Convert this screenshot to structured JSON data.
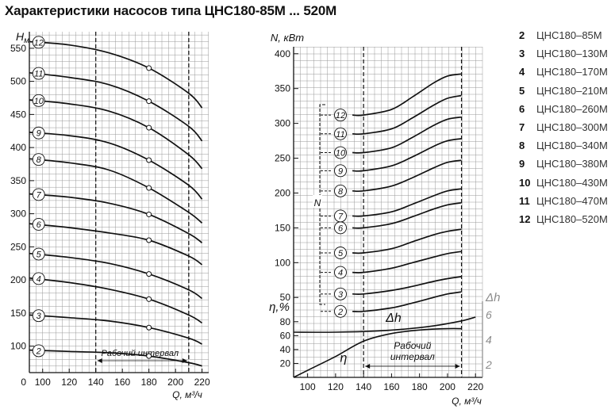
{
  "title": "Характеристики насосов типа ЦНС180-85М ... 520М",
  "legend": [
    {
      "num": "2",
      "name": "ЦНС180–85М"
    },
    {
      "num": "3",
      "name": "ЦНС180–130М"
    },
    {
      "num": "4",
      "name": "ЦНС180–170М"
    },
    {
      "num": "5",
      "name": "ЦНС180–210М"
    },
    {
      "num": "6",
      "name": "ЦНС180–260М"
    },
    {
      "num": "7",
      "name": "ЦНС180–300М"
    },
    {
      "num": "8",
      "name": "ЦНС180–340М"
    },
    {
      "num": "9",
      "name": "ЦНС180–380М"
    },
    {
      "num": "10",
      "name": "ЦНС180–430М"
    },
    {
      "num": "11",
      "name": "ЦНС180–470М"
    },
    {
      "num": "12",
      "name": "ЦНС180–520М"
    }
  ],
  "chart_data": [
    {
      "type": "line",
      "ylabel": "H",
      "ylabel_sub": "м",
      "xlabel": "Q, м³/ч",
      "origin_label": "0",
      "xlim": [
        90,
        225
      ],
      "ylim": [
        60,
        575
      ],
      "xticks": [
        100,
        120,
        140,
        160,
        180,
        200,
        220
      ],
      "yticks": [
        100,
        150,
        200,
        250,
        300,
        350,
        400,
        450,
        500,
        550
      ],
      "working_range": [
        140,
        210
      ],
      "working_range_label": "Рабочий интервал",
      "series": [
        {
          "name": "2",
          "x": [
            90,
            120,
            150,
            180,
            210,
            220
          ],
          "y": [
            94,
            92,
            90,
            85,
            75,
            70
          ],
          "marker": 180
        },
        {
          "name": "3",
          "x": [
            90,
            120,
            150,
            180,
            210,
            220
          ],
          "y": [
            147,
            143,
            138,
            128,
            112,
            103
          ],
          "marker": 180
        },
        {
          "name": "4",
          "x": [
            90,
            120,
            150,
            180,
            210,
            220
          ],
          "y": [
            203,
            196,
            186,
            171,
            147,
            135
          ],
          "marker": 180
        },
        {
          "name": "5",
          "x": [
            90,
            120,
            150,
            180,
            210,
            220
          ],
          "y": [
            240,
            234,
            225,
            209,
            185,
            172
          ],
          "marker": 180
        },
        {
          "name": "6",
          "x": [
            90,
            120,
            150,
            180,
            210,
            220
          ],
          "y": [
            285,
            279,
            271,
            260,
            236,
            223
          ],
          "marker": 180
        },
        {
          "name": "7",
          "x": [
            90,
            120,
            150,
            180,
            210,
            220
          ],
          "y": [
            330,
            325,
            316,
            299,
            270,
            256
          ],
          "marker": 180
        },
        {
          "name": "8",
          "x": [
            90,
            120,
            150,
            180,
            210,
            220
          ],
          "y": [
            383,
            377,
            366,
            339,
            302,
            286
          ],
          "marker": 180
        },
        {
          "name": "9",
          "x": [
            90,
            120,
            150,
            180,
            210,
            220
          ],
          "y": [
            423,
            418,
            407,
            381,
            343,
            322
          ],
          "marker": 180
        },
        {
          "name": "10",
          "x": [
            90,
            120,
            150,
            180,
            210,
            220
          ],
          "y": [
            472,
            466,
            455,
            430,
            389,
            368
          ],
          "marker": 180
        },
        {
          "name": "11",
          "x": [
            90,
            120,
            150,
            180,
            210,
            220
          ],
          "y": [
            513,
            506,
            495,
            470,
            432,
            410
          ],
          "marker": 180
        },
        {
          "name": "12",
          "x": [
            90,
            120,
            150,
            180,
            210,
            220
          ],
          "y": [
            560,
            555,
            543,
            520,
            482,
            460
          ],
          "marker": 180
        }
      ]
    },
    {
      "type": "line",
      "ylabel": "N, кВт",
      "xlabel": "Q, м³/ч",
      "xlim": [
        90,
        225
      ],
      "ylim": [
        40,
        410
      ],
      "xticks": [
        100,
        120,
        140,
        160,
        180,
        200,
        220
      ],
      "yticks": [
        50,
        100,
        150,
        200,
        250,
        300,
        350,
        400
      ],
      "working_range": [
        140,
        210
      ],
      "bracket_label": "N",
      "series": [
        {
          "name": "2",
          "x": [
            140,
            160,
            175,
            190,
            200,
            210
          ],
          "y": [
            30,
            35,
            42,
            50,
            55,
            58
          ]
        },
        {
          "name": "3",
          "x": [
            140,
            160,
            175,
            190,
            200,
            210
          ],
          "y": [
            55,
            60,
            66,
            73,
            77,
            80
          ]
        },
        {
          "name": "4",
          "x": [
            140,
            160,
            175,
            190,
            200,
            210
          ],
          "y": [
            86,
            92,
            100,
            108,
            113,
            116
          ]
        },
        {
          "name": "5",
          "x": [
            140,
            160,
            175,
            190,
            200,
            210
          ],
          "y": [
            114,
            120,
            130,
            140,
            145,
            148
          ]
        },
        {
          "name": "6",
          "x": [
            140,
            160,
            175,
            190,
            200,
            210
          ],
          "y": [
            150,
            156,
            166,
            177,
            183,
            186
          ]
        },
        {
          "name": "7",
          "x": [
            140,
            160,
            175,
            190,
            200,
            210
          ],
          "y": [
            167,
            173,
            184,
            196,
            203,
            206
          ]
        },
        {
          "name": "8",
          "x": [
            140,
            160,
            175,
            190,
            200,
            210
          ],
          "y": [
            203,
            210,
            222,
            236,
            244,
            247
          ]
        },
        {
          "name": "9",
          "x": [
            140,
            160,
            175,
            190,
            200,
            210
          ],
          "y": [
            232,
            239,
            252,
            267,
            275,
            278
          ]
        },
        {
          "name": "10",
          "x": [
            140,
            160,
            175,
            190,
            200,
            210
          ],
          "y": [
            258,
            265,
            280,
            297,
            306,
            309
          ]
        },
        {
          "name": "11",
          "x": [
            140,
            160,
            175,
            190,
            200,
            210
          ],
          "y": [
            285,
            292,
            308,
            326,
            336,
            340
          ]
        },
        {
          "name": "12",
          "x": [
            140,
            160,
            175,
            190,
            200,
            210
          ],
          "y": [
            312,
            320,
            338,
            358,
            368,
            371
          ]
        }
      ]
    },
    {
      "type": "line",
      "ylabel": "η,%",
      "xlabel": "Q, м³/ч",
      "xlim": [
        90,
        225
      ],
      "ylim": [
        0,
        90
      ],
      "xticks": [
        100,
        120,
        140,
        160,
        180,
        200,
        220
      ],
      "yticks": [
        20,
        40,
        60,
        80
      ],
      "secondary_axis_label": "Δh",
      "secondary_yticks": [
        2,
        4,
        6
      ],
      "secondary_ylim": [
        1,
        7
      ],
      "working_range": [
        140,
        210
      ],
      "working_range_label": [
        "Рабочий",
        "интервал"
      ],
      "series": [
        {
          "name": "η",
          "axis": "primary",
          "x": [
            90,
            100,
            120,
            140,
            160,
            180,
            200,
            210
          ],
          "y": [
            0,
            10,
            30,
            52,
            63,
            68,
            70,
            70
          ]
        },
        {
          "name": "Δh",
          "axis": "secondary",
          "x": [
            90,
            120,
            150,
            170,
            190,
            210,
            220
          ],
          "y": [
            4.6,
            4.6,
            4.7,
            4.85,
            5.1,
            5.5,
            5.8
          ]
        }
      ]
    }
  ],
  "colors": {
    "line": "#111111",
    "grid": "#999999",
    "secondary_axis": "#8a8a8a"
  }
}
